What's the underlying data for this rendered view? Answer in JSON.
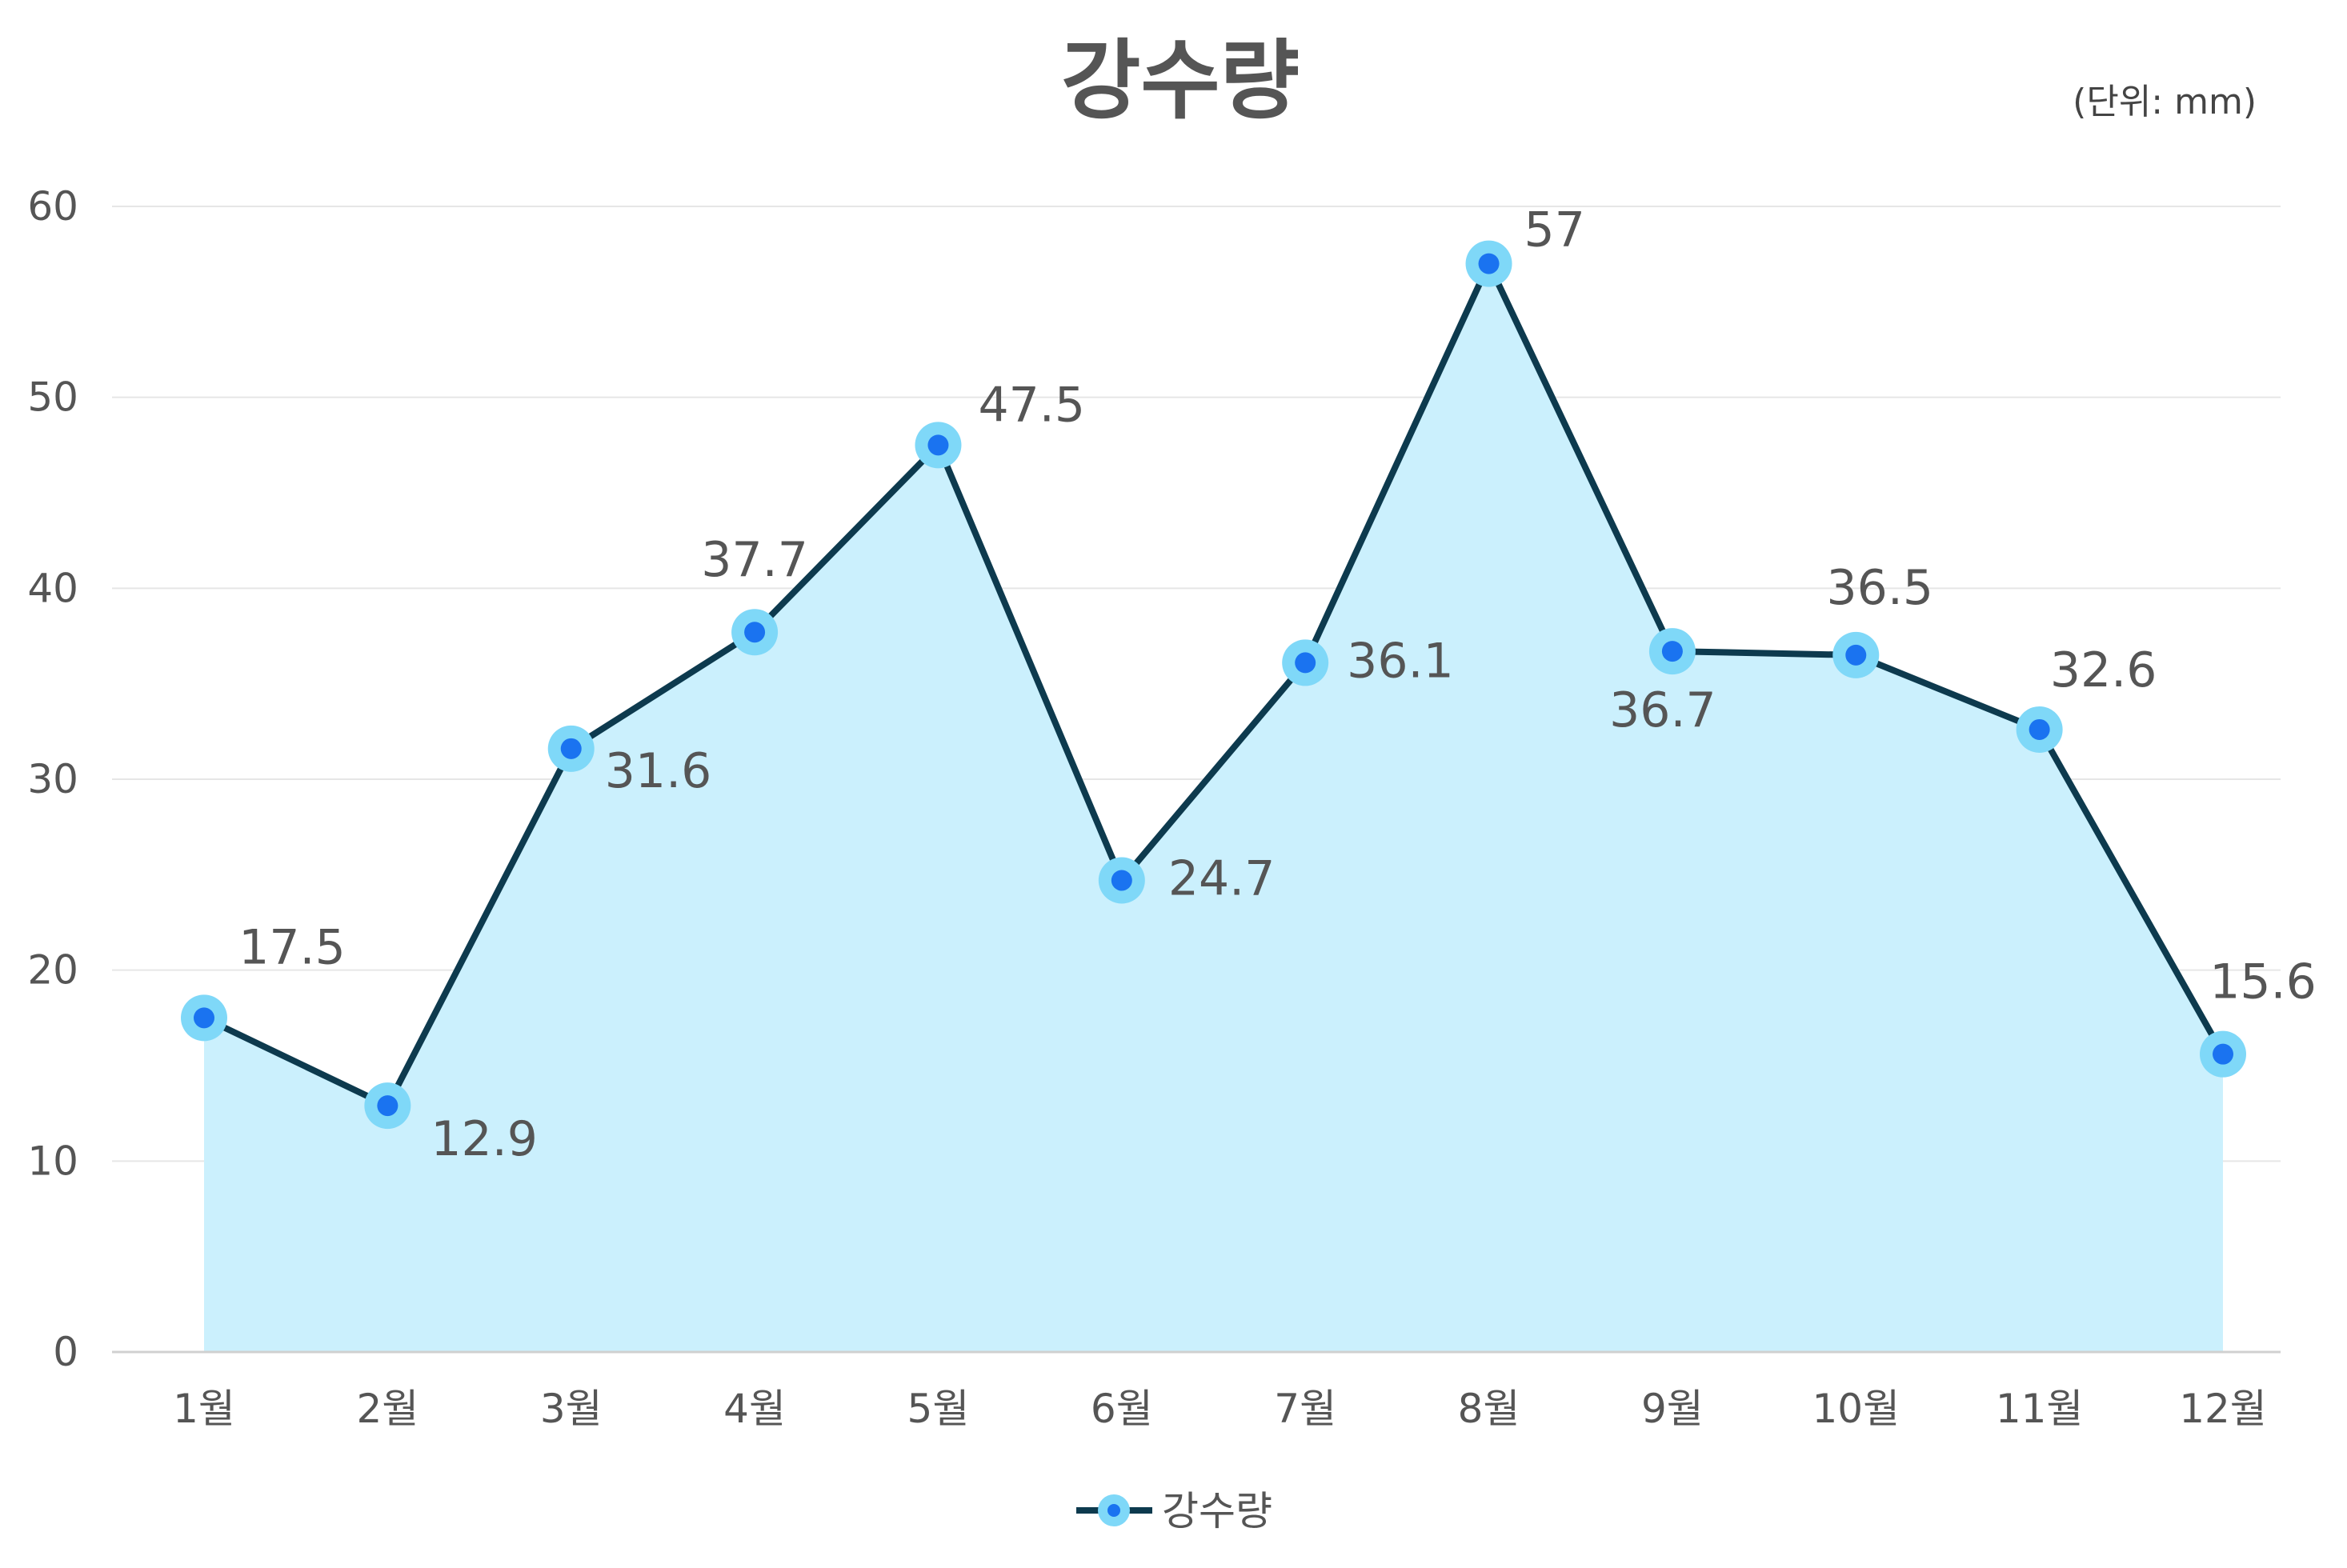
{
  "chart_data": {
    "type": "area",
    "title": "강수량",
    "unit_note": "(단위: mm)",
    "categories": [
      "1월",
      "2월",
      "3월",
      "4월",
      "5월",
      "6월",
      "7월",
      "8월",
      "9월",
      "10월",
      "11월",
      "12월"
    ],
    "series": [
      {
        "name": "강수량",
        "values": [
          17.5,
          12.9,
          31.6,
          37.7,
          47.5,
          24.7,
          36.1,
          57,
          36.7,
          36.5,
          32.6,
          15.6
        ]
      }
    ],
    "ylim": [
      0,
      60
    ],
    "yticks": [
      0,
      10,
      20,
      30,
      40,
      50,
      60
    ],
    "grid": true,
    "legend": "bottom-center",
    "colors": {
      "line": "#0d3a4e",
      "area_fill": "#cbf0fd",
      "marker_outer": "#7fd8f8",
      "marker_inner": "#1a73f0",
      "text": "#555555",
      "grid": "#e6e6e6"
    }
  }
}
